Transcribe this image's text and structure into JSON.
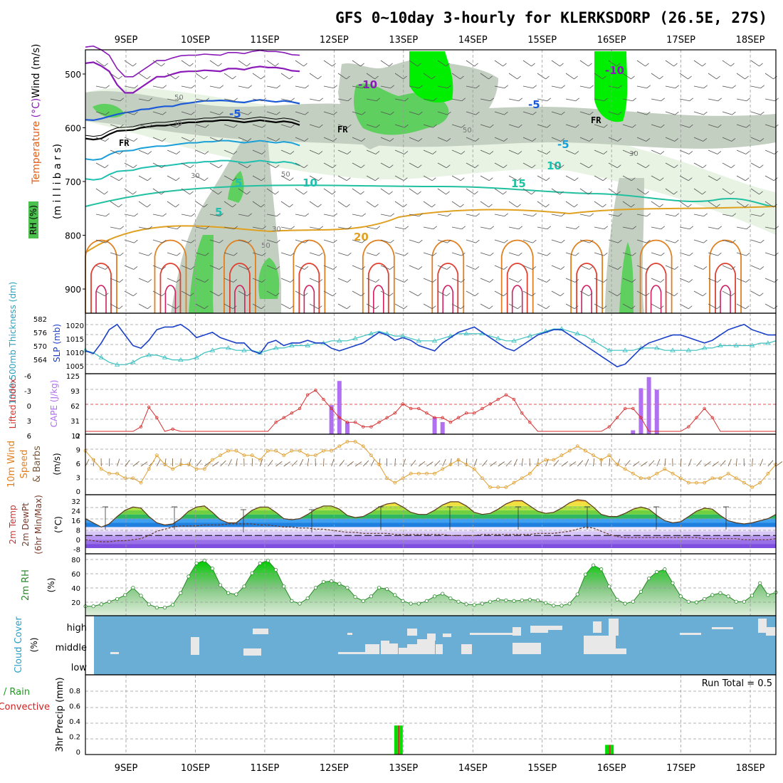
{
  "title": "GFS 0~10day 3-hourly for KLERKSDORP (26.5E, 27S)",
  "dates": [
    "9SEP",
    "10SEP",
    "11SEP",
    "12SEP",
    "13SEP",
    "14SEP",
    "15SEP",
    "16SEP",
    "17SEP",
    "18SEP"
  ],
  "colors": {
    "grid": "#9a9a9a",
    "rh_light": "#e8f3e4",
    "rh_mid": "#c3cfc1",
    "rh_dark": "#a8b4a6",
    "rh_green": "#5fcf5f",
    "rh_bright": "#00ee00",
    "slp": "#1a3fc8",
    "thickness": "#3cc0c0",
    "cape": "#b070f0",
    "lifted": "#d83030",
    "wind": "#e0a030",
    "barb": "#7a5a3a",
    "cloud": "#6aaed6",
    "cloud_gap": "#e8e8e8",
    "rain_total": "#00dd00",
    "rain_conv": "#e03030",
    "rh2m": "#2a8a2a"
  },
  "chart_data": [
    {
      "panel": "upper_air_cross_section",
      "type": "heatmap",
      "ylabel": "(m i l l i b a r s)",
      "yticks": [
        500,
        600,
        700,
        800,
        900
      ],
      "legend": {
        "wind": "Wind (m/s)",
        "temperature": "Temperature (°C)",
        "rh": "RH (%)"
      },
      "rh_labels": [
        "30",
        "50",
        "30",
        "50",
        "30",
        "50",
        "50",
        "30"
      ],
      "isotherm_labels": [
        "-10",
        "-10",
        "-5",
        "-5",
        "FR",
        "FR",
        "FR",
        "-5",
        "10",
        "5",
        "5",
        "10",
        "15",
        "20"
      ],
      "freezing_level_mb": [
        620,
        622,
        620,
        612,
        606,
        605,
        604,
        600,
        598,
        596,
        596,
        594,
        592,
        590,
        590,
        588,
        588,
        586,
        586,
        588,
        590,
        588,
        586,
        588,
        590,
        588,
        590,
        595
      ],
      "isotherm_minus5_mb": [
        585,
        586,
        583,
        579,
        575,
        572,
        570,
        566,
        565,
        562,
        560,
        560,
        556,
        554,
        552,
        550,
        550,
        549,
        550,
        552,
        553,
        550,
        548,
        550,
        552,
        550,
        552,
        555
      ],
      "isotherm_minus10_mb": [
        480,
        478,
        485,
        495,
        520,
        535,
        535,
        525,
        515,
        505,
        505,
        500,
        496,
        495,
        495,
        493,
        494,
        495,
        490,
        490,
        492,
        488,
        486,
        488,
        488,
        490,
        494,
        495
      ]
    },
    {
      "panel": "slp_thickness",
      "type": "line",
      "ylabel_left": "1000-500mb Thickness (dm)",
      "ylabel_right": "SLP (mb)",
      "yticks_left": [
        "582",
        "576",
        "570",
        "564"
      ],
      "yticks_right": [
        "1020",
        "1015",
        "1010",
        "1005"
      ],
      "series": [
        {
          "name": "SLP (mb)",
          "values": [
            1012,
            1011,
            1015,
            1020,
            1022,
            1018,
            1014,
            1013,
            1016,
            1020,
            1021,
            1021,
            1022,
            1020,
            1017,
            1018,
            1019,
            1017,
            1016,
            1015,
            1015,
            1012,
            1011,
            1015,
            1016,
            1014,
            1015,
            1015,
            1016,
            1015,
            1015,
            1013,
            1012,
            1013,
            1014,
            1015,
            1017,
            1019,
            1018,
            1016,
            1017,
            1016,
            1014,
            1013,
            1012,
            1015,
            1017,
            1019,
            1020,
            1021,
            1019,
            1017,
            1015,
            1013,
            1012,
            1014,
            1016,
            1018,
            1019,
            1020,
            1020,
            1018,
            1016,
            1014,
            1012,
            1010,
            1008,
            1006,
            1007,
            1010,
            1013,
            1015,
            1016,
            1017,
            1018,
            1018,
            1017,
            1016,
            1015,
            1016,
            1018,
            1020,
            1021,
            1022,
            1020,
            1019,
            1018,
            1018
          ]
        },
        {
          "name": "1000-500mb Thickness (dm)",
          "values": [
            571,
            570,
            568,
            566,
            565,
            565,
            566,
            568,
            569,
            569,
            568,
            567,
            567,
            567,
            568,
            570,
            571,
            572,
            572,
            571,
            571,
            571,
            570,
            571,
            572,
            572,
            573,
            573,
            573,
            574,
            574,
            575,
            575,
            575,
            576,
            577,
            578,
            579,
            578,
            577,
            577,
            576,
            575,
            575,
            575,
            576,
            577,
            578,
            578,
            578,
            578,
            577,
            576,
            575,
            575,
            576,
            577,
            578,
            579,
            580,
            580,
            579,
            578,
            577,
            575,
            573,
            571,
            571,
            571,
            571,
            572,
            572,
            572,
            571,
            571,
            571,
            571,
            571,
            572,
            572,
            573,
            573,
            573,
            573,
            573,
            574,
            574,
            575
          ]
        }
      ]
    },
    {
      "panel": "cape_lifted_index",
      "type": "bar",
      "ylabel_left": "Lifted Index",
      "ylabel_right": "CAPE (J/kg)",
      "yticks_left": [
        "-6",
        "-3",
        "0",
        "3",
        "6"
      ],
      "yticks_right": [
        "125",
        "93",
        "62",
        "31",
        "0"
      ],
      "series": [
        {
          "name": "CAPE (J/kg)",
          "values": [
            0,
            0,
            0,
            0,
            0,
            0,
            0,
            0,
            0,
            0,
            0,
            0,
            0,
            0,
            0,
            0,
            0,
            0,
            0,
            0,
            0,
            0,
            0,
            0,
            0,
            0,
            0,
            0,
            0,
            0,
            0,
            60,
            110,
            25,
            0,
            0,
            0,
            0,
            0,
            0,
            0,
            0,
            0,
            0,
            35,
            25,
            0,
            0,
            0,
            0,
            0,
            0,
            0,
            0,
            0,
            0,
            0,
            0,
            0,
            0,
            0,
            0,
            0,
            0,
            0,
            0,
            0,
            0,
            0,
            8,
            95,
            118,
            92,
            0,
            0,
            0,
            0,
            0,
            0,
            0,
            0,
            0,
            0,
            0,
            0,
            0,
            0,
            0
          ]
        },
        {
          "name": "Lifted Index",
          "values": [
            6,
            6,
            6,
            6,
            6,
            6,
            6,
            5,
            0.7,
            3,
            6,
            5.5,
            6,
            6,
            6,
            6,
            6,
            6,
            6,
            6,
            6,
            6,
            6,
            6,
            4,
            3,
            2,
            1,
            -2,
            -3,
            -1,
            1,
            3,
            4,
            4,
            5,
            5,
            4,
            3,
            2,
            0,
            1,
            1,
            2,
            3,
            3,
            4,
            3,
            2,
            2,
            1,
            0,
            -1,
            -2,
            -1,
            2,
            4,
            6,
            6,
            6,
            6,
            6,
            6,
            6,
            6,
            6,
            5,
            3,
            1,
            1,
            3,
            6,
            6,
            6,
            6,
            6,
            5,
            3,
            1,
            3,
            6,
            6,
            6,
            6,
            6,
            6,
            6,
            6
          ]
        }
      ]
    },
    {
      "panel": "wind_10m",
      "type": "line",
      "ylabel": "10m Wind Speed & Barbs (m/s)",
      "yticks": [
        "12",
        "9",
        "6",
        "3",
        "0"
      ],
      "series": [
        {
          "name": "10m Wind Speed (m/s)",
          "values": [
            9,
            7,
            5,
            4,
            4,
            3,
            3,
            2,
            5,
            8,
            6,
            5,
            6,
            6,
            5,
            5,
            7,
            8,
            9,
            9,
            8,
            8,
            7,
            9,
            9,
            8,
            9,
            9,
            8,
            8,
            9,
            9,
            10,
            11,
            11,
            10,
            8,
            6,
            3,
            2,
            3,
            4,
            4,
            4,
            4,
            5,
            6,
            7,
            6,
            5,
            3,
            1,
            1,
            1,
            2,
            3,
            4,
            6,
            7,
            7,
            8,
            9,
            10,
            9,
            8,
            7,
            8,
            6,
            5,
            4,
            3,
            3,
            4,
            5,
            4,
            3,
            2,
            2,
            2,
            3,
            3,
            4,
            3,
            2,
            1,
            2,
            4,
            6
          ]
        }
      ]
    },
    {
      "panel": "temperature_2m",
      "type": "area",
      "ylabel": "2m Temp 2m DewPt (6hr Min/Max) (°C)",
      "yticks": [
        "32",
        "24",
        "16",
        "8",
        "0",
        "-8"
      ],
      "series": [
        {
          "name": "2m Temp (°C)",
          "values": [
            16,
            12,
            8,
            11,
            18,
            24,
            27,
            26,
            18,
            12,
            10,
            11,
            16,
            23,
            27,
            28,
            22,
            15,
            12,
            12,
            18,
            24,
            27,
            27,
            22,
            16,
            15,
            16,
            20,
            25,
            28,
            28,
            25,
            19,
            17,
            18,
            22,
            27,
            30,
            31,
            27,
            22,
            20,
            20,
            24,
            29,
            32,
            32,
            28,
            22,
            20,
            21,
            25,
            30,
            33,
            33,
            28,
            23,
            21,
            22,
            26,
            31,
            34,
            33,
            27,
            20,
            18,
            18,
            21,
            25,
            27,
            25,
            19,
            14,
            12,
            13,
            18,
            23,
            26,
            25,
            19,
            14,
            12,
            11,
            12,
            14,
            16,
            20
          ]
        },
        {
          "name": "2m DewPt (°C)",
          "values": [
            -4,
            -5,
            -6,
            -6,
            -5,
            -5,
            -4,
            -3,
            0,
            4,
            6,
            8,
            9,
            9,
            9,
            10,
            10,
            10,
            11,
            11,
            11,
            11,
            10,
            10,
            9,
            8,
            8,
            7,
            7,
            6,
            6,
            5,
            4,
            3,
            3,
            2,
            2,
            2,
            2,
            1,
            1,
            1,
            1,
            1,
            1,
            1,
            0,
            0,
            0,
            0,
            1,
            1,
            1,
            1,
            1,
            1,
            1,
            2,
            2,
            2,
            3,
            4,
            6,
            8,
            7,
            4,
            1,
            -1,
            -2,
            -2,
            -2,
            -2,
            -2,
            -2,
            -2,
            -2,
            -2,
            -2,
            -3,
            -3,
            -3,
            -3,
            -3,
            -4,
            -4,
            -4,
            -4,
            -3
          ]
        }
      ]
    },
    {
      "panel": "rh_2m",
      "type": "area",
      "ylabel": "2m RH (%)",
      "yticks": [
        "80",
        "60",
        "40",
        "20"
      ],
      "series": [
        {
          "name": "2m RH (%)",
          "values": [
            10,
            10,
            13,
            17,
            21,
            27,
            38,
            26,
            13,
            8,
            8,
            12,
            30,
            55,
            75,
            79,
            67,
            42,
            30,
            28,
            40,
            60,
            75,
            79,
            65,
            40,
            18,
            14,
            22,
            38,
            47,
            48,
            44,
            38,
            24,
            18,
            25,
            38,
            36,
            27,
            18,
            14,
            14,
            18,
            25,
            29,
            22,
            17,
            13,
            12,
            14,
            17,
            20,
            19,
            18,
            19,
            20,
            19,
            15,
            11,
            11,
            14,
            28,
            58,
            72,
            66,
            40,
            20,
            14,
            17,
            32,
            52,
            62,
            66,
            45,
            25,
            17,
            16,
            21,
            27,
            30,
            25,
            17,
            17,
            26,
            45,
            27,
            31
          ]
        }
      ]
    },
    {
      "panel": "cloud_cover",
      "type": "heatmap",
      "ylabel": "Cloud Cover (%)",
      "yticks": [
        "high",
        "middle",
        "low"
      ]
    },
    {
      "panel": "precip_3hr",
      "type": "bar",
      "ylabel": "3hr Precip (mm)",
      "legend_total": "Total / Rain",
      "legend_conv": "Convective",
      "yticks": [
        "0.8",
        "0.6",
        "0.4",
        "0.2",
        "0"
      ],
      "run_total": "Run Total = 0.5",
      "series": [
        {
          "name": "Total / Rain",
          "x": [
            "13SEP",
            "16SEP"
          ],
          "values": [
            0.39,
            0.13
          ]
        },
        {
          "name": "Convective",
          "x": [
            "13SEP",
            "16SEP"
          ],
          "values": [
            0.39,
            0.13
          ]
        }
      ]
    }
  ]
}
